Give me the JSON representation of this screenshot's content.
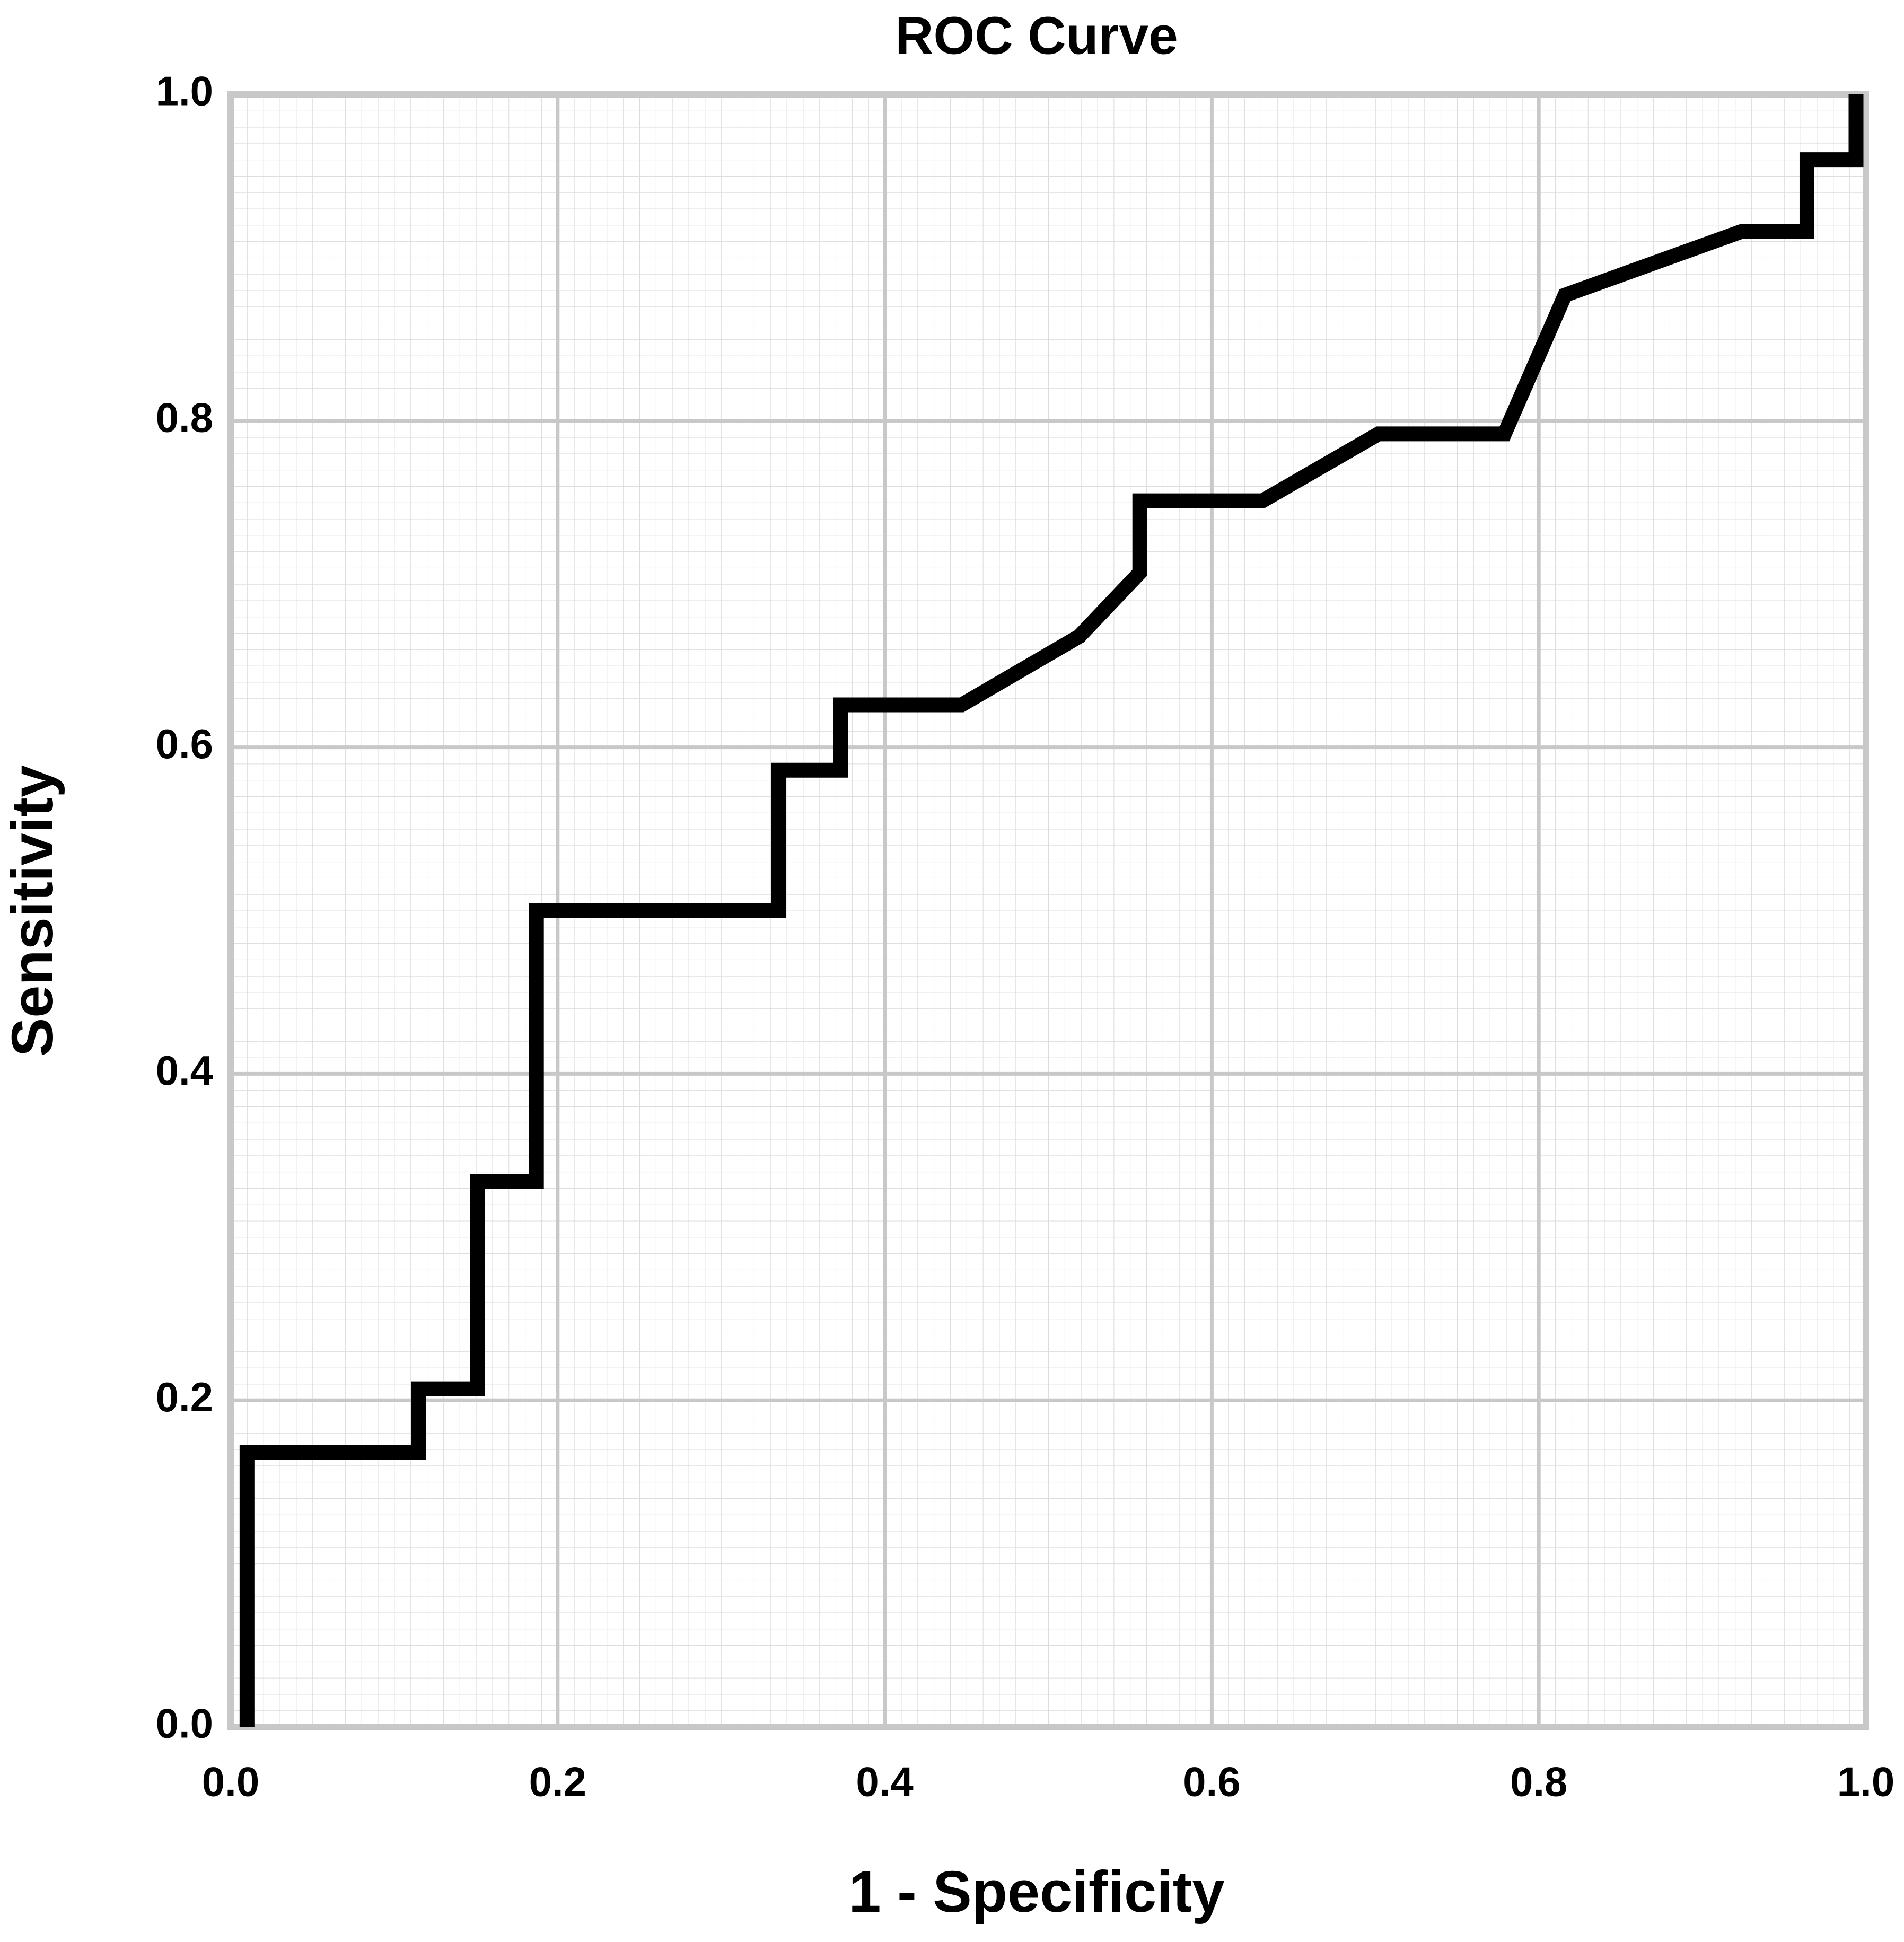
{
  "chart_data": {
    "type": "line",
    "title": "ROC Curve",
    "x_label": "1 - Specificity",
    "y_label": "Sensitivity",
    "series": [
      {
        "color": "#000000",
        "x": [
          0.01,
          0.01,
          0.115,
          0.115,
          0.151,
          0.151,
          0.187,
          0.187,
          0.335,
          0.335,
          0.373,
          0.373,
          0.447,
          0.519,
          0.556,
          0.556,
          0.631,
          0.702,
          0.779,
          0.816,
          0.924,
          0.964,
          0.964,
          0.994,
          0.994
        ],
        "values": [
          0,
          0.168,
          0.168,
          0.207,
          0.207,
          0.334,
          0.334,
          0.5,
          0.5,
          0.586,
          0.586,
          0.626,
          0.626,
          0.668,
          0.707,
          0.751,
          0.751,
          0.792,
          0.792,
          0.877,
          0.916,
          0.916,
          0.96,
          0.96,
          1.0
        ]
      }
    ],
    "xlim": [
      0,
      1
    ],
    "ylim": [
      0,
      1
    ],
    "xticks": [
      {
        "value": 0,
        "label": "0.0"
      },
      {
        "value": 0.2,
        "label": "0.2"
      },
      {
        "value": 0.4,
        "label": "0.4"
      },
      {
        "value": 0.6,
        "label": "0.6"
      },
      {
        "value": 0.8,
        "label": "0.8"
      },
      {
        "value": 1,
        "label": "1.0"
      }
    ],
    "yticks": [
      {
        "value": 0,
        "label": "0.0"
      },
      {
        "value": 0.2,
        "label": "0.2"
      },
      {
        "value": 0.4,
        "label": "0.4"
      },
      {
        "value": 0.6,
        "label": "0.6"
      },
      {
        "value": 0.8,
        "label": "0.8"
      },
      {
        "value": 1,
        "label": "1.0"
      }
    ],
    "grid": true
  }
}
